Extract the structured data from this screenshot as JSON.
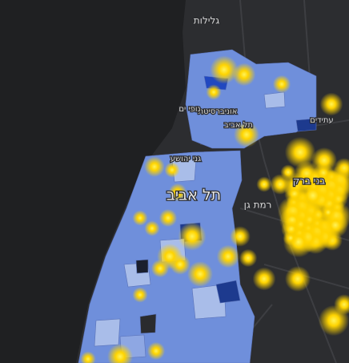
{
  "map": {
    "labels": [
      {
        "text": "גלילות"
      },
      {
        "text": "אוניברסיטת"
      },
      {
        "text": "נופי ים"
      },
      {
        "text": "תל אביב"
      },
      {
        "text": "עתידים"
      },
      {
        "text": "גני יהושע"
      },
      {
        "text": "תל אביב"
      },
      {
        "text": "בני ברק"
      },
      {
        "text": "רמת גן"
      }
    ]
  }
}
